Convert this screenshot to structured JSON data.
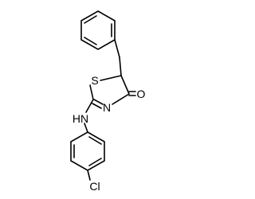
{
  "atoms": [
    {
      "label": "S"
    },
    {
      "label": "N"
    },
    {
      "label": "O"
    },
    {
      "label": "HN"
    },
    {
      "label": "Cl"
    }
  ]
}
